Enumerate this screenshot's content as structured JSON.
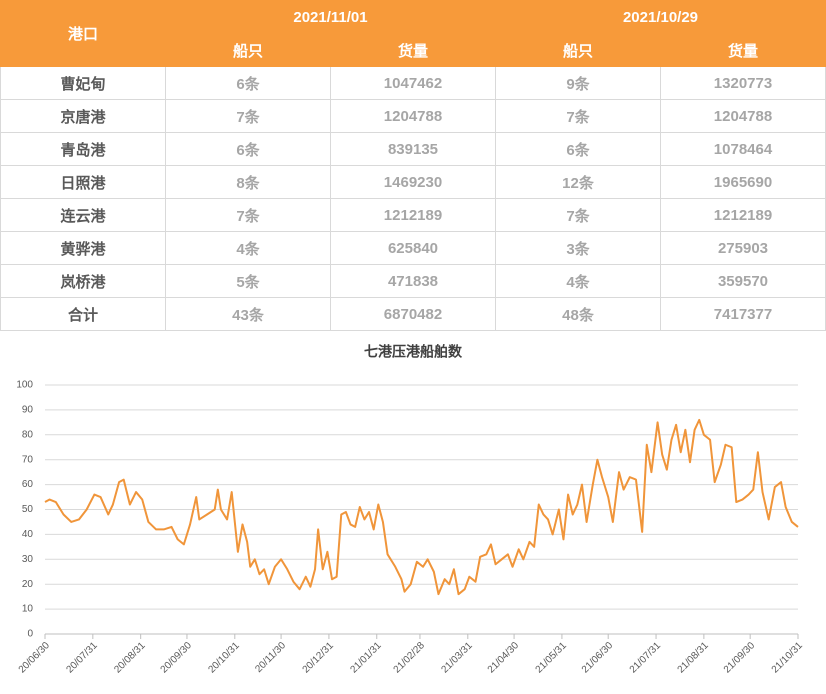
{
  "table": {
    "header": {
      "port": "港口",
      "dates": [
        "2021/11/01",
        "2021/10/29"
      ],
      "columns": [
        "船只",
        "货量",
        "船只",
        "货量"
      ]
    },
    "rows": [
      [
        "曹妃甸",
        "6条",
        1047462,
        "9条",
        1320773
      ],
      [
        "京唐港",
        "7条",
        1204788,
        "7条",
        1204788
      ],
      [
        "青岛港",
        "6条",
        839135,
        "6条",
        1078464
      ],
      [
        "日照港",
        "8条",
        1469230,
        "12条",
        1965690
      ],
      [
        "连云港",
        "7条",
        1212189,
        "7条",
        1212189
      ],
      [
        "黄骅港",
        "4条",
        625840,
        "3条",
        275903
      ],
      [
        "岚桥港",
        "5条",
        471838,
        "4条",
        359570
      ],
      [
        "合计",
        "43条",
        6870482,
        "48条",
        7417377
      ]
    ]
  },
  "chart_data": {
    "type": "line",
    "title": "七港压港船舶数",
    "x": [
      "20/06/30",
      "20/07/03",
      "20/07/07",
      "20/07/12",
      "20/07/17",
      "20/07/22",
      "20/07/27",
      "20/08/01",
      "20/08/05",
      "20/08/10",
      "20/08/13",
      "20/08/17",
      "20/08/20",
      "20/08/24",
      "20/08/28",
      "20/09/01",
      "20/09/05",
      "20/09/10",
      "20/09/15",
      "20/09/20",
      "20/09/24",
      "20/09/28",
      "20/10/02",
      "20/10/06",
      "20/10/08",
      "20/10/13",
      "20/10/18",
      "20/10/20",
      "20/10/22",
      "20/10/26",
      "20/10/29",
      "20/11/02",
      "20/11/05",
      "20/11/08",
      "20/11/10",
      "20/11/13",
      "20/11/16",
      "20/11/19",
      "20/11/22",
      "20/11/26",
      "20/11/30",
      "20/12/04",
      "20/12/08",
      "20/12/12",
      "20/12/16",
      "20/12/19",
      "20/12/22",
      "20/12/24",
      "20/12/27",
      "20/12/30",
      "21/01/02",
      "21/01/05",
      "21/01/08",
      "21/01/11",
      "21/01/14",
      "21/01/17",
      "21/01/20",
      "21/01/23",
      "21/01/26",
      "21/01/29",
      "21/02/01",
      "21/02/04",
      "21/02/07",
      "21/02/12",
      "21/02/16",
      "21/02/18",
      "21/02/22",
      "21/02/26",
      "21/03/02",
      "21/03/05",
      "21/03/09",
      "21/03/12",
      "21/03/16",
      "21/03/19",
      "21/03/22",
      "21/03/25",
      "21/03/29",
      "21/04/01",
      "21/04/05",
      "21/04/08",
      "21/04/12",
      "21/04/15",
      "21/04/18",
      "21/04/22",
      "21/04/26",
      "21/04/29",
      "21/05/03",
      "21/05/06",
      "21/05/10",
      "21/05/13",
      "21/05/16",
      "21/05/19",
      "21/05/22",
      "21/05/25",
      "21/05/29",
      "21/06/01",
      "21/06/04",
      "21/06/07",
      "21/06/10",
      "21/06/13",
      "21/06/16",
      "21/06/20",
      "21/06/23",
      "21/06/26",
      "21/06/30",
      "21/07/03",
      "21/07/07",
      "21/07/10",
      "21/07/14",
      "21/07/18",
      "21/07/22",
      "21/07/25",
      "21/07/28",
      "21/08/01",
      "21/08/04",
      "21/08/07",
      "21/08/10",
      "21/08/13",
      "21/08/16",
      "21/08/19",
      "21/08/22",
      "21/08/25",
      "21/08/28",
      "21/08/31",
      "21/09/04",
      "21/09/07",
      "21/09/11",
      "21/09/14",
      "21/09/18",
      "21/09/21",
      "21/09/25",
      "21/09/29",
      "21/10/02",
      "21/10/05",
      "21/10/08",
      "21/10/12",
      "21/10/16",
      "21/10/20",
      "21/10/23",
      "21/10/27",
      "21/10/31"
    ],
    "series": [
      {
        "name": "七港压港船舶数",
        "color": "#f0953a",
        "values": [
          53,
          54,
          53,
          48,
          45,
          46,
          50,
          56,
          55,
          48,
          52,
          61,
          62,
          52,
          57,
          54,
          45,
          42,
          42,
          43,
          38,
          36,
          44,
          55,
          46,
          48,
          50,
          58,
          50,
          46,
          57,
          33,
          44,
          37,
          27,
          30,
          24,
          26,
          20,
          27,
          30,
          26,
          21,
          18,
          23,
          19,
          26,
          42,
          26,
          33,
          22,
          23,
          48,
          49,
          44,
          43,
          51,
          46,
          49,
          42,
          52,
          45,
          32,
          27,
          22,
          17,
          20,
          29,
          27,
          30,
          25,
          16,
          22,
          20,
          26,
          16,
          18,
          23,
          21,
          31,
          32,
          36,
          28,
          30,
          32,
          27,
          34,
          30,
          37,
          35,
          52,
          48,
          46,
          40,
          50,
          38,
          56,
          48,
          52,
          60,
          45,
          60,
          70,
          63,
          55,
          45,
          65,
          58,
          63,
          62,
          41,
          76,
          65,
          85,
          72,
          66,
          78,
          84,
          73,
          82,
          69,
          82,
          86,
          80,
          78,
          61,
          68,
          76,
          75,
          53,
          54,
          56,
          58,
          73,
          57,
          46,
          59,
          61,
          51,
          45,
          43
        ]
      }
    ],
    "xlim": [
      "20/06/30",
      "21/10/31"
    ],
    "xticks": [
      "20/06/30",
      "20/07/31",
      "20/08/31",
      "20/09/30",
      "20/10/31",
      "20/11/30",
      "20/12/31",
      "21/01/31",
      "21/02/28",
      "21/03/31",
      "21/04/30",
      "21/05/31",
      "21/06/30",
      "21/07/31",
      "21/08/31",
      "21/09/30",
      "21/10/31"
    ],
    "ylim": [
      0,
      100
    ],
    "yticks": [
      0,
      10,
      20,
      30,
      40,
      50,
      60,
      70,
      80,
      90,
      100
    ],
    "grid": true
  }
}
